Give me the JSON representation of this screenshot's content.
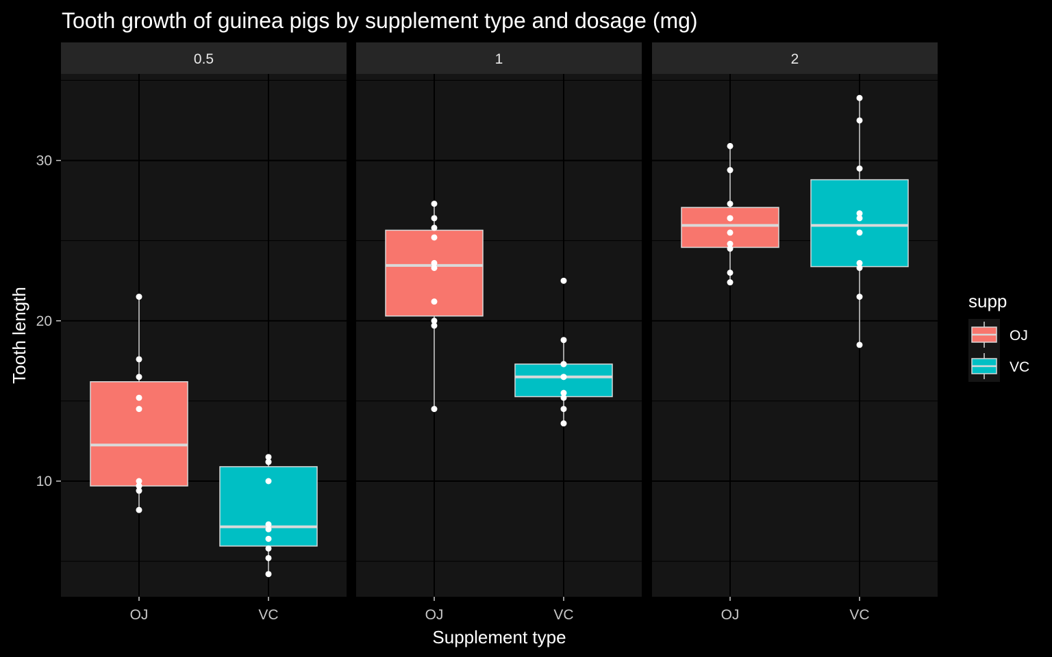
{
  "chart_data": {
    "type": "boxplot",
    "title": "Tooth growth of guinea pigs by supplement type and dosage (mg)",
    "xlabel": "Supplement type",
    "ylabel": "Tooth length",
    "ylim": [
      3.5,
      35.5
    ],
    "yticks": [
      10,
      20,
      30
    ],
    "ytick_labels": [
      "10",
      "20",
      "30"
    ],
    "facet_variable": "dose",
    "facets": [
      "0.5",
      "1",
      "2"
    ],
    "categories": [
      "OJ",
      "VC"
    ],
    "grid": true,
    "legend": {
      "title": "supp",
      "position": "right",
      "entries": [
        {
          "label": "OJ",
          "color": "#F8766D"
        },
        {
          "label": "VC",
          "color": "#00BFC4"
        }
      ]
    },
    "colors": {
      "OJ": "#F8766D",
      "VC": "#00BFC4",
      "panel_background": "#151515",
      "strip_background": "#262626",
      "grid_line": "#000000",
      "box_outline": "#d9d9d9",
      "point": "#ffffff"
    },
    "panels": [
      {
        "facet": "0.5",
        "boxes": [
          {
            "category": "OJ",
            "min": 8.2,
            "q1": 9.7,
            "median": 12.25,
            "q3": 16.2,
            "max": 21.5,
            "points": [
              15.2,
              21.5,
              17.6,
              9.7,
              14.5,
              10.0,
              8.2,
              9.4,
              16.5,
              9.7
            ]
          },
          {
            "category": "VC",
            "min": 4.2,
            "q1": 5.95,
            "median": 7.15,
            "q3": 10.9,
            "max": 11.5,
            "points": [
              4.2,
              11.5,
              7.3,
              5.8,
              6.4,
              10.0,
              11.2,
              11.2,
              5.2,
              7.0
            ]
          }
        ]
      },
      {
        "facet": "1",
        "boxes": [
          {
            "category": "OJ",
            "min": 14.5,
            "q1": 20.3,
            "median": 23.45,
            "q3": 25.65,
            "max": 27.3,
            "points": [
              19.7,
              23.3,
              23.6,
              26.4,
              20.0,
              25.2,
              25.8,
              21.2,
              14.5,
              27.3
            ]
          },
          {
            "category": "VC",
            "min": 13.6,
            "q1": 15.27,
            "median": 16.5,
            "q3": 17.3,
            "max": 18.8,
            "points": [
              16.5,
              16.5,
              15.2,
              17.3,
              22.5,
              17.3,
              13.6,
              14.5,
              18.8,
              15.5
            ]
          }
        ]
      },
      {
        "facet": "2",
        "boxes": [
          {
            "category": "OJ",
            "min": 22.4,
            "q1": 24.58,
            "median": 25.95,
            "q3": 27.07,
            "max": 30.9,
            "points": [
              25.5,
              26.4,
              22.4,
              24.5,
              24.8,
              30.9,
              26.4,
              27.3,
              29.4,
              23.0
            ]
          },
          {
            "category": "VC",
            "min": 18.5,
            "q1": 23.38,
            "median": 25.95,
            "q3": 28.8,
            "max": 33.9,
            "points": [
              23.6,
              18.5,
              33.9,
              25.5,
              26.4,
              32.5,
              26.7,
              21.5,
              23.3,
              29.5
            ]
          }
        ]
      }
    ]
  }
}
